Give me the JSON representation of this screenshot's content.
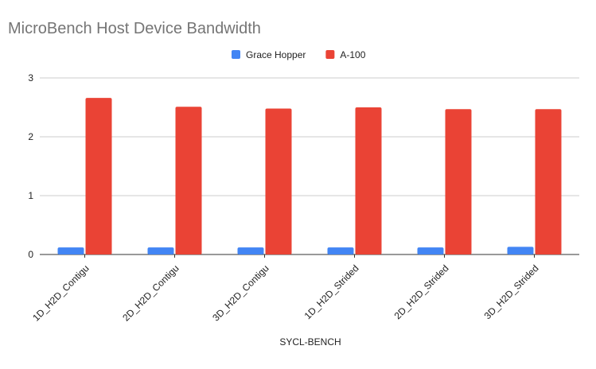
{
  "chart_data": {
    "type": "bar",
    "title": "MicroBench Host Device Bandwidth",
    "xlabel": "SYCL-BENCH",
    "ylabel": "",
    "ylim": [
      0,
      3
    ],
    "yticks": [
      "0",
      "1",
      "2",
      "3"
    ],
    "grid": true,
    "legend_position": "top",
    "categories": [
      "1D_H2D_Contigu",
      "2D_H2D_Contigu",
      "3D_H2D_Contigu",
      "1D_H2D_Strided",
      "2D_H2D_Strided",
      "3D_H2D_Strided"
    ],
    "series": [
      {
        "name": "Grace Hopper",
        "color": "#4285f4",
        "values": [
          0.12,
          0.12,
          0.12,
          0.12,
          0.12,
          0.13
        ]
      },
      {
        "name": "A-100",
        "color": "#ea4335",
        "values": [
          2.66,
          2.51,
          2.48,
          2.5,
          2.47,
          2.47
        ]
      }
    ]
  }
}
